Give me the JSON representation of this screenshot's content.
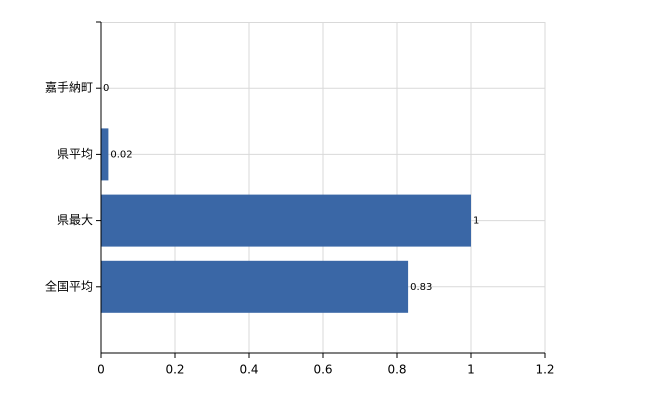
{
  "chart_data": {
    "type": "bar",
    "orientation": "horizontal",
    "categories": [
      "嘉手納町",
      "県平均",
      "県最大",
      "全国平均"
    ],
    "values": [
      0,
      0.02,
      1,
      0.83
    ],
    "color": "#3a67a6",
    "xlim": [
      0,
      1.2
    ],
    "xticks": [
      0,
      0.2,
      0.4,
      0.6,
      0.8,
      1,
      1.2
    ],
    "grid": true
  }
}
